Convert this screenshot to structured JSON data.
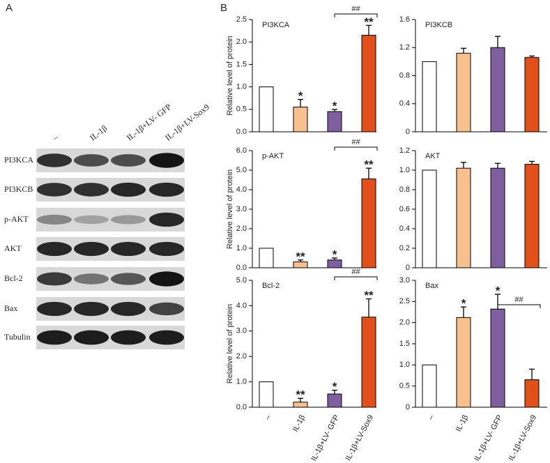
{
  "panel_a": {
    "label": "A",
    "lanes": [
      "–",
      "IL-1β",
      "IL-1β+LV- GFP",
      "IL-1β+LV-Sox9"
    ],
    "rows": [
      "PI3KCA",
      "PI3KCB",
      "p-AKT",
      "AKT",
      "Bcl-2",
      "Bax",
      "Tubulin"
    ]
  },
  "panel_b": {
    "label": "B",
    "ylabel": "Relative level of protein"
  },
  "chart_data": [
    {
      "type": "bar",
      "title": "PI3KCA",
      "values": [
        1.0,
        0.55,
        0.45,
        2.15
      ],
      "errors": [
        0,
        0.17,
        0.05,
        0.22
      ],
      "colors": [
        "#ffffff",
        "#f9c08f",
        "#7f5fa0",
        "#e2501a"
      ],
      "sig": [
        null,
        "*",
        "*",
        "**"
      ],
      "bracket": {
        "label": "##",
        "from": 2,
        "to": 3
      },
      "ylim": [
        0,
        2.5
      ],
      "yticks": [
        {
          "value": 0,
          "label": "0.0"
        },
        0.5,
        {
          "value": 1,
          "label": "1.0"
        },
        1.5,
        {
          "value": 2,
          "label": "2.0"
        },
        2.5
      ]
    },
    {
      "type": "bar",
      "title": "PI3KCB",
      "values": [
        1.0,
        1.12,
        1.2,
        1.06
      ],
      "errors": [
        0,
        0.07,
        0.16,
        0.02
      ],
      "colors": [
        "#ffffff",
        "#f9c08f",
        "#7f5fa0",
        "#e2501a"
      ],
      "ylim": [
        0,
        1.6
      ],
      "yticks": [
        0,
        0.4,
        0.8,
        1.2,
        1.6
      ]
    },
    {
      "type": "bar",
      "title": "p-AKT",
      "values": [
        1.0,
        0.3,
        0.4,
        4.55
      ],
      "errors": [
        0,
        0.1,
        0.1,
        0.55
      ],
      "colors": [
        "#ffffff",
        "#f9c08f",
        "#7f5fa0",
        "#e2501a"
      ],
      "sig": [
        null,
        "**",
        "*",
        "**"
      ],
      "bracket": {
        "label": "##",
        "from": 2,
        "to": 3
      },
      "ylim": [
        0,
        6
      ],
      "yticks": [
        {
          "value": 0,
          "label": "0.0"
        },
        {
          "value": 1,
          "label": "1.0"
        },
        {
          "value": 2,
          "label": "2.0"
        },
        {
          "value": 3,
          "label": "3.0"
        },
        {
          "value": 4,
          "label": "4.0"
        },
        {
          "value": 5,
          "label": "5.0"
        },
        {
          "value": 6,
          "label": "6.0"
        }
      ]
    },
    {
      "type": "bar",
      "title": "AKT",
      "values": [
        1.0,
        1.02,
        1.02,
        1.06
      ],
      "errors": [
        0,
        0.06,
        0.05,
        0.03
      ],
      "colors": [
        "#ffffff",
        "#f9c08f",
        "#7f5fa0",
        "#e2501a"
      ],
      "ylim": [
        0,
        1.2
      ],
      "yticks": [
        0,
        0.2,
        0.4,
        0.6,
        0.8,
        {
          "value": 1,
          "label": "1.0"
        },
        1.2
      ]
    },
    {
      "type": "bar",
      "title": "Bcl-2",
      "categories": [
        "–",
        "IL-1β",
        "IL-1β+LV- GFP",
        "IL-1β+LV-Sox9"
      ],
      "values": [
        1.0,
        0.2,
        0.52,
        3.55
      ],
      "errors": [
        0,
        0.15,
        0.15,
        0.72
      ],
      "colors": [
        "#ffffff",
        "#f9c08f",
        "#7f5fa0",
        "#e2501a"
      ],
      "sig": [
        null,
        "**",
        "*",
        "**"
      ],
      "bracket": {
        "label": "##",
        "from": 2,
        "to": 3
      },
      "ylim": [
        0,
        5
      ],
      "yticks": [
        {
          "value": 0,
          "label": "0.0"
        },
        {
          "value": 1,
          "label": "1.0"
        },
        {
          "value": 2,
          "label": "2.0"
        },
        {
          "value": 3,
          "label": "3.0"
        },
        {
          "value": 4,
          "label": "4.0"
        },
        {
          "value": 5,
          "label": "5.0"
        }
      ]
    },
    {
      "type": "bar",
      "title": "Bax",
      "categories": [
        "–",
        "IL-1β",
        "IL-1β+LV- GFP",
        "IL-1β+LV-Sox9"
      ],
      "values": [
        1.0,
        2.12,
        2.32,
        0.65
      ],
      "errors": [
        0,
        0.25,
        0.35,
        0.25
      ],
      "colors": [
        "#ffffff",
        "#f9c08f",
        "#7f5fa0",
        "#e2501a"
      ],
      "sig": [
        null,
        "*",
        "*",
        null
      ],
      "bracket": {
        "label": "##",
        "from": 2,
        "to": 3
      },
      "ylim": [
        0,
        3
      ],
      "yticks": [
        0,
        0.5,
        {
          "value": 1,
          "label": "1.0"
        },
        1.5,
        {
          "value": 2,
          "label": "2.0"
        },
        2.5,
        {
          "value": 3,
          "label": "3.0"
        }
      ]
    }
  ]
}
